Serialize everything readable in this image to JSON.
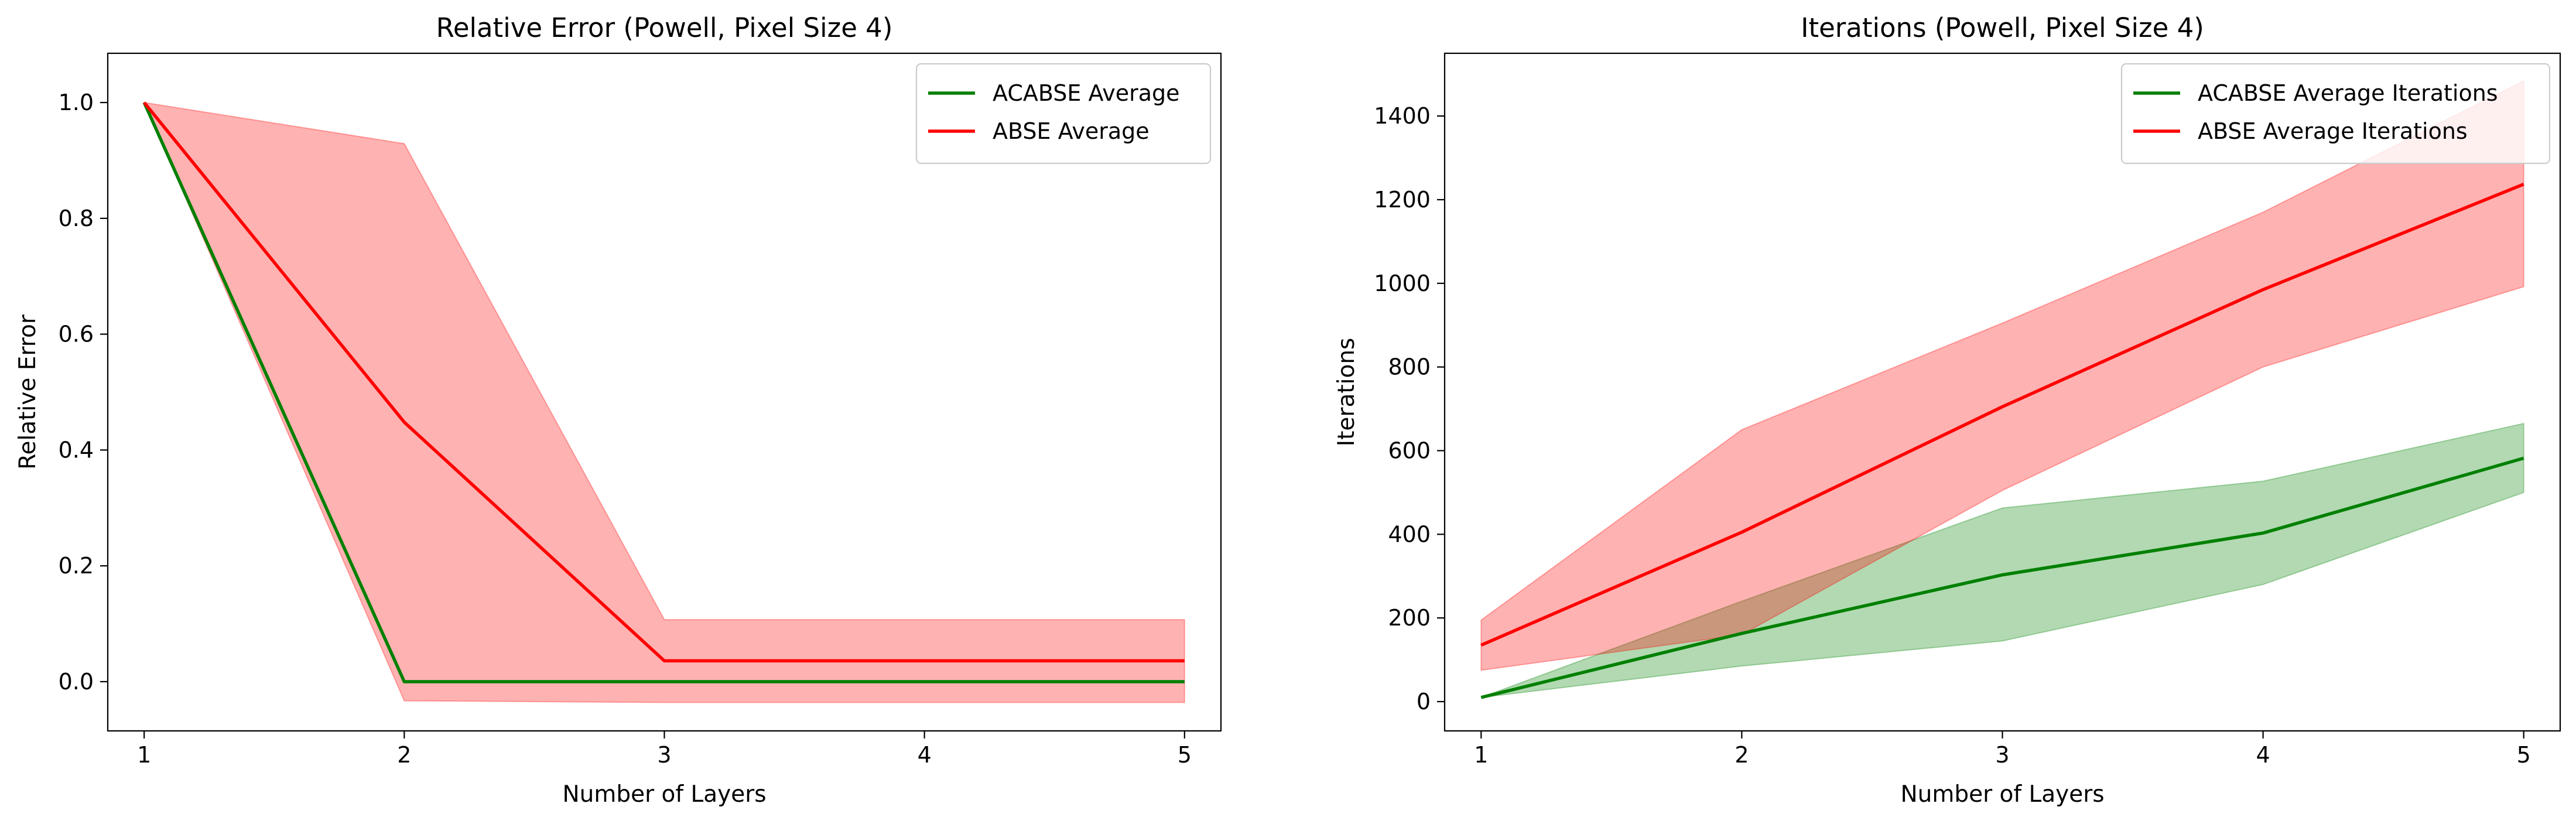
{
  "chart_data": [
    {
      "type": "line",
      "title": "Relative Error (Powell, Pixel Size 4)",
      "xlabel": "Number of Layers",
      "ylabel": "Relative Error",
      "x": [
        1,
        2,
        3,
        4,
        5
      ],
      "xticks": [
        "1",
        "2",
        "3",
        "4",
        "5"
      ],
      "yticks": [
        "0.0",
        "0.2",
        "0.4",
        "0.6",
        "0.8",
        "1.0"
      ],
      "xlim": [
        0.86,
        5.14
      ],
      "ylim": [
        -0.085,
        1.085
      ],
      "legend_position": "top-right",
      "grid": false,
      "series": [
        {
          "name": "ACABSE Average",
          "color": "#008000",
          "values": [
            1.0,
            0.0,
            0.0,
            0.0,
            0.0
          ],
          "band_lower": [
            1.0,
            0.0,
            0.0,
            0.0,
            0.0
          ],
          "band_upper": [
            1.0,
            0.0,
            0.0,
            0.0,
            0.0
          ]
        },
        {
          "name": "ABSE Average",
          "color": "#ff0000",
          "values": [
            1.0,
            0.448,
            0.036,
            0.036,
            0.036
          ],
          "band_lower": [
            1.0,
            -0.033,
            -0.036,
            -0.036,
            -0.036
          ],
          "band_upper": [
            1.0,
            0.929,
            0.107,
            0.107,
            0.107
          ]
        }
      ]
    },
    {
      "type": "line",
      "title": "Iterations (Powell, Pixel Size 4)",
      "xlabel": "Number of Layers",
      "ylabel": "Iterations",
      "x": [
        1,
        2,
        3,
        4,
        5
      ],
      "xticks": [
        "1",
        "2",
        "3",
        "4",
        "5"
      ],
      "yticks": [
        "0",
        "200",
        "400",
        "600",
        "800",
        "1000",
        "1200",
        "1400"
      ],
      "xlim": [
        0.86,
        5.14
      ],
      "ylim": [
        -70,
        1550
      ],
      "legend_position": "top-right",
      "grid": false,
      "series": [
        {
          "name": "ACABSE Average Iterations",
          "color": "#008000",
          "values": [
            10,
            163,
            303,
            403,
            582
          ],
          "band_lower": [
            10,
            85,
            145,
            280,
            500
          ],
          "band_upper": [
            10,
            240,
            463,
            527,
            665
          ]
        },
        {
          "name": "ABSE Average Iterations",
          "color": "#ff0000",
          "values": [
            135,
            405,
            705,
            985,
            1237
          ],
          "band_lower": [
            75,
            160,
            505,
            800,
            992
          ],
          "band_upper": [
            195,
            650,
            905,
            1170,
            1484
          ]
        }
      ]
    }
  ]
}
